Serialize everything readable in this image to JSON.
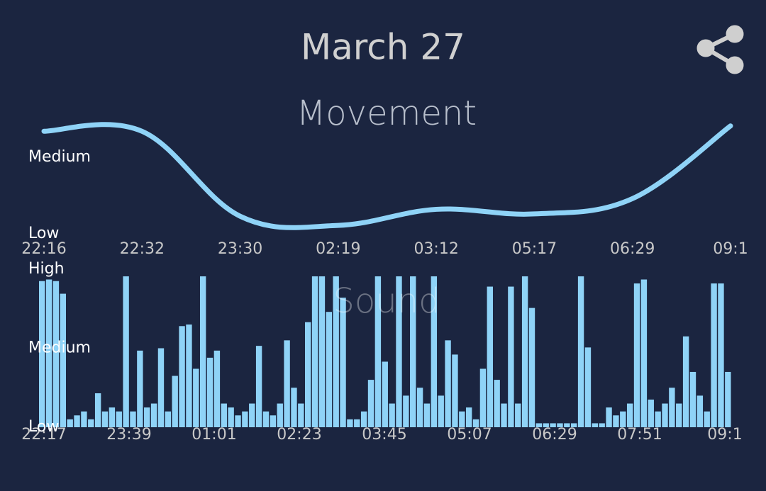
{
  "header": {
    "title": "March 27"
  },
  "chart_data": [
    {
      "type": "line",
      "title": "Movement",
      "categories": [
        "22:16",
        "22:32",
        "23:30",
        "02:19",
        "03:12",
        "05:17",
        "06:29",
        "09:1"
      ],
      "values": [
        2.34,
        2.34,
        1.23,
        1.11,
        1.32,
        1.26,
        1.46,
        2.41
      ],
      "color": "#8fd3f7",
      "ylim": [
        0.9,
        2.5
      ],
      "yticks": [
        {
          "value": 1,
          "label": "Low"
        },
        {
          "value": 2,
          "label": "Medium"
        }
      ]
    },
    {
      "type": "bar",
      "title": "Sound",
      "x_labels": [
        "22:17",
        "23:39",
        "01:01",
        "02:23",
        "03:45",
        "05:07",
        "06:29",
        "07:51",
        "09:1"
      ],
      "values": [
        1.85,
        1.87,
        1.85,
        1.69,
        0.1,
        0.15,
        0.2,
        0.1,
        0.43,
        0.2,
        0.25,
        0.2,
        1.91,
        0.2,
        0.97,
        0.25,
        0.3,
        1.0,
        0.2,
        0.65,
        1.28,
        1.3,
        0.74,
        1.91,
        0.88,
        0.97,
        0.3,
        0.25,
        0.15,
        0.2,
        0.3,
        1.03,
        0.2,
        0.15,
        0.3,
        1.1,
        0.5,
        0.3,
        1.33,
        1.91,
        1.91,
        1.46,
        1.91,
        1.64,
        0.1,
        0.1,
        0.2,
        0.6,
        1.91,
        0.83,
        0.3,
        1.91,
        0.4,
        1.91,
        0.5,
        0.3,
        1.91,
        0.4,
        1.1,
        0.92,
        0.2,
        0.25,
        0.1,
        0.74,
        1.78,
        0.6,
        0.3,
        1.78,
        0.3,
        1.91,
        1.51,
        0.05,
        0.05,
        0.05,
        0.05,
        0.05,
        0.05,
        1.91,
        1.01,
        0.05,
        0.05,
        0.25,
        0.15,
        0.2,
        0.3,
        1.82,
        1.87,
        0.35,
        0.2,
        0.3,
        0.5,
        0.3,
        1.15,
        0.7,
        0.4,
        0.2,
        1.82,
        1.82,
        0.7
      ],
      "color": "#8fd3f7",
      "ylim": [
        0,
        2
      ],
      "yticks": [
        {
          "value": 0,
          "label": "Low"
        },
        {
          "value": 1,
          "label": "Medium"
        },
        {
          "value": 2,
          "label": "High"
        }
      ]
    }
  ]
}
